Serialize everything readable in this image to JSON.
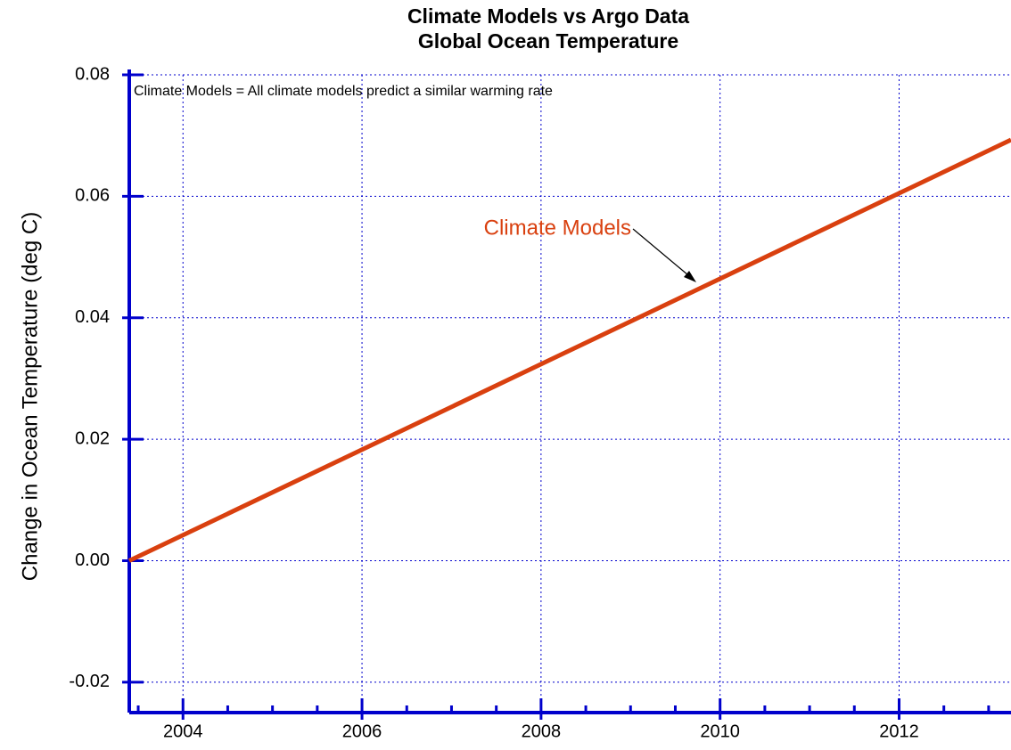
{
  "chart_data": {
    "type": "line",
    "title": [
      "Climate Models vs Argo Data",
      "Global Ocean Temperature"
    ],
    "y_label": "Change in Ocean Temperature (deg C)",
    "annotations": [
      "Climate Models = All climate models predict a similar warming rate",
      "Climate Models"
    ],
    "x": [
      2003.4,
      2013.25
    ],
    "series": [
      {
        "name": "Climate Models",
        "color": "#d9400f",
        "values": [
          0,
          0.0693
        ]
      }
    ],
    "xlim": [
      2003.4,
      2013.25
    ],
    "xticks": [
      2004,
      2006,
      2008,
      2010,
      2012
    ],
    "ylim": [
      -0.025,
      0.08
    ],
    "yticks": [
      0.08,
      0.06,
      0.04,
      0.02,
      {
        "value": 0,
        "label": "0.00"
      },
      -0.02
    ],
    "grid": true,
    "axis_color": "#0000cc"
  }
}
